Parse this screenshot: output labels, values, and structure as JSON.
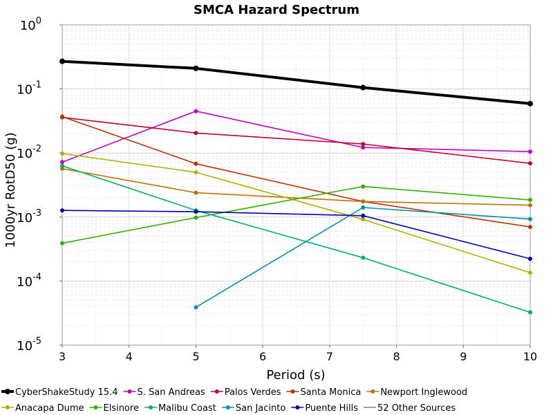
{
  "chart_data": {
    "type": "line",
    "title": "SMCA Hazard Spectrum",
    "xlabel": "Period (s)",
    "ylabel": "1000yr RotD50 (g)",
    "xlim": [
      3,
      10
    ],
    "ylim": [
      1e-05,
      1
    ],
    "yscale": "log",
    "grid": true,
    "legend_position": "bottom",
    "x_ticks": [
      "3",
      "4",
      "5",
      "6",
      "7",
      "8",
      "9",
      "10"
    ],
    "y_ticks": [
      {
        "base": "10",
        "exp": "0"
      },
      {
        "base": "10",
        "exp": "-1"
      },
      {
        "base": "10",
        "exp": "-2"
      },
      {
        "base": "10",
        "exp": "-3"
      },
      {
        "base": "10",
        "exp": "-4"
      },
      {
        "base": "10",
        "exp": "-5"
      }
    ],
    "series": [
      {
        "name": "CyberShakeStudy 15.4",
        "color": "#000000",
        "thick": true,
        "points": [
          [
            3,
            0.27
          ],
          [
            5,
            0.21
          ],
          [
            7.5,
            0.105
          ],
          [
            10,
            0.059
          ]
        ]
      },
      {
        "name": "S. San Andreas",
        "color": "#c000c0",
        "points": [
          [
            3,
            0.0072
          ],
          [
            5,
            0.045
          ],
          [
            7.5,
            0.0122
          ],
          [
            10,
            0.0105
          ]
        ]
      },
      {
        "name": "Palos Verdes",
        "color": "#c00030",
        "points": [
          [
            3,
            0.036
          ],
          [
            5,
            0.0205
          ],
          [
            7.5,
            0.0138
          ],
          [
            10,
            0.0069
          ]
        ]
      },
      {
        "name": "Santa Monica",
        "color": "#c03000",
        "points": [
          [
            3,
            0.037
          ],
          [
            5,
            0.0068
          ],
          [
            7.5,
            0.00175
          ],
          [
            10,
            0.0007
          ]
        ]
      },
      {
        "name": "Newport Inglewood",
        "color": "#c07000",
        "points": [
          [
            3,
            0.0057
          ],
          [
            5,
            0.0024
          ],
          [
            7.5,
            0.00175
          ],
          [
            10,
            0.00153
          ]
        ]
      },
      {
        "name": "Anacapa Dume",
        "color": "#b0b000",
        "points": [
          [
            3,
            0.0098
          ],
          [
            5,
            0.005
          ],
          [
            7.5,
            0.00092
          ],
          [
            10,
            0.000135
          ]
        ]
      },
      {
        "name": "Elsinore",
        "color": "#30b000",
        "points": [
          [
            3,
            0.00039
          ],
          [
            5,
            0.00098
          ],
          [
            7.5,
            0.003
          ],
          [
            10,
            0.00185
          ]
        ]
      },
      {
        "name": "Malibu Coast",
        "color": "#00b060",
        "points": [
          [
            3,
            0.0063
          ],
          [
            5,
            0.00127
          ],
          [
            7.5,
            0.000232
          ],
          [
            10,
            3.25e-05
          ]
        ]
      },
      {
        "name": "San Jacinto",
        "color": "#0090b0",
        "points": [
          [
            5,
            3.9e-05
          ],
          [
            7.5,
            0.00141
          ],
          [
            10,
            0.00093
          ]
        ]
      },
      {
        "name": "Puente Hills",
        "color": "#0000b0",
        "points": [
          [
            3,
            0.00127
          ],
          [
            5,
            0.00121
          ],
          [
            7.5,
            0.00105
          ],
          [
            10,
            0.000223
          ]
        ]
      },
      {
        "name": "52 Other Sources",
        "color": "#808080",
        "no_marker": true,
        "points": []
      }
    ]
  }
}
